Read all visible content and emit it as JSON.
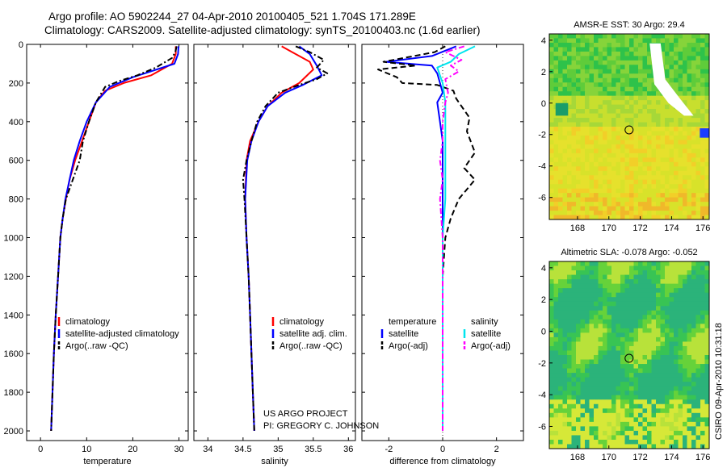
{
  "header": {
    "line1": "Argo profile: AO 5902244_27 04-Apr-2010 20100405_521 1.704S 171.289E",
    "line2": "Climatology: CARS2009. Satellite-adjusted climatology: synTS_20100403.nc (1.6d earlier)"
  },
  "side_credit": "CSIRO 09-Apr-2010 10:31:18",
  "colors": {
    "clim": "#ff0000",
    "sat": "#0000ff",
    "argo": "#000000",
    "sat_diff": "#00e5ee",
    "argo_diff": "#ff00ff"
  },
  "chart_data": [
    {
      "type": "line",
      "title": "",
      "xlabel": "temperature",
      "ylabel": "",
      "xlim": [
        -3,
        32
      ],
      "ylim": [
        2050,
        0
      ],
      "xticks": [
        0,
        10,
        20,
        30
      ],
      "yticks": [
        0,
        200,
        400,
        600,
        800,
        1000,
        1200,
        1400,
        1600,
        1800,
        2000
      ],
      "legend": [
        "climatology",
        "satellite-adjusted climatology",
        "Argo(..raw -QC)"
      ],
      "series": [
        {
          "name": "climatology",
          "color": "#ff0000",
          "style": "solid",
          "points": [
            [
              29.3,
              10
            ],
            [
              29.3,
              50
            ],
            [
              28.5,
              100
            ],
            [
              24,
              160
            ],
            [
              18,
              200
            ],
            [
              14,
              240
            ],
            [
              12,
              300
            ],
            [
              10.5,
              400
            ],
            [
              9,
              500
            ],
            [
              7.5,
              600
            ],
            [
              6.3,
              700
            ],
            [
              5.5,
              800
            ],
            [
              4.8,
              900
            ],
            [
              4.3,
              1000
            ],
            [
              3.8,
              1200
            ],
            [
              3.3,
              1400
            ],
            [
              2.9,
              1600
            ],
            [
              2.6,
              1800
            ],
            [
              2.3,
              2000
            ]
          ]
        },
        {
          "name": "satellite-adjusted climatology",
          "color": "#0000ff",
          "style": "solid",
          "points": [
            [
              29.9,
              10
            ],
            [
              29.8,
              50
            ],
            [
              29,
              100
            ],
            [
              20,
              170
            ],
            [
              15,
              220
            ],
            [
              13.5,
              260
            ],
            [
              12,
              300
            ],
            [
              10,
              400
            ],
            [
              8.5,
              500
            ],
            [
              7.2,
              600
            ],
            [
              6.3,
              700
            ],
            [
              5.4,
              800
            ],
            [
              4.8,
              900
            ],
            [
              4.3,
              1000
            ],
            [
              3.8,
              1200
            ],
            [
              3.3,
              1400
            ],
            [
              2.9,
              1600
            ],
            [
              2.6,
              1800
            ],
            [
              2.3,
              2000
            ]
          ]
        },
        {
          "name": "Argo(..raw -QC)",
          "color": "#000000",
          "style": "dashdot",
          "points": [
            [
              29.5,
              10
            ],
            [
              29.2,
              40
            ],
            [
              28.5,
              70
            ],
            [
              25,
              120
            ],
            [
              21,
              160
            ],
            [
              17,
              190
            ],
            [
              14,
              220
            ],
            [
              13,
              260
            ],
            [
              12,
              300
            ],
            [
              10.5,
              400
            ],
            [
              9.2,
              500
            ],
            [
              8.5,
              600
            ],
            [
              7,
              700
            ],
            [
              5.5,
              800
            ],
            [
              4.8,
              900
            ],
            [
              4.3,
              1000
            ],
            [
              3.8,
              1200
            ],
            [
              3.3,
              1400
            ],
            [
              2.9,
              1600
            ],
            [
              2.6,
              1800
            ],
            [
              2.3,
              2000
            ]
          ]
        }
      ]
    },
    {
      "type": "line",
      "title": "",
      "xlabel": "salinity",
      "ylabel": "",
      "xlim": [
        33.8,
        36.1
      ],
      "ylim": [
        2050,
        0
      ],
      "xticks": [
        34,
        34.5,
        35,
        35.5,
        36
      ],
      "yticks": [],
      "legend": [
        "climatology",
        "satellite adj. clim.",
        "Argo(..raw -QC)"
      ],
      "series": [
        {
          "name": "climatology",
          "color": "#ff0000",
          "style": "solid",
          "points": [
            [
              35.05,
              10
            ],
            [
              35.2,
              40
            ],
            [
              35.45,
              90
            ],
            [
              35.5,
              130
            ],
            [
              35.3,
              200
            ],
            [
              35.05,
              250
            ],
            [
              34.85,
              320
            ],
            [
              34.72,
              400
            ],
            [
              34.6,
              500
            ],
            [
              34.55,
              600
            ],
            [
              34.53,
              800
            ],
            [
              34.55,
              1000
            ],
            [
              34.58,
              1200
            ],
            [
              34.6,
              1400
            ],
            [
              34.62,
              1600
            ],
            [
              34.64,
              1800
            ],
            [
              34.66,
              2000
            ]
          ]
        },
        {
          "name": "satellite adj. clim.",
          "color": "#0000ff",
          "style": "solid",
          "points": [
            [
              35.3,
              10
            ],
            [
              35.45,
              50
            ],
            [
              35.55,
              110
            ],
            [
              35.62,
              160
            ],
            [
              35.35,
              210
            ],
            [
              35.1,
              250
            ],
            [
              34.85,
              320
            ],
            [
              34.72,
              400
            ],
            [
              34.62,
              500
            ],
            [
              34.56,
              600
            ],
            [
              34.53,
              800
            ],
            [
              34.55,
              1000
            ],
            [
              34.58,
              1200
            ],
            [
              34.6,
              1400
            ],
            [
              34.62,
              1600
            ],
            [
              34.64,
              1800
            ],
            [
              34.66,
              2000
            ]
          ]
        },
        {
          "name": "Argo(..raw -QC)",
          "color": "#000000",
          "style": "dashdot",
          "points": [
            [
              35.25,
              10
            ],
            [
              35.45,
              40
            ],
            [
              35.65,
              80
            ],
            [
              35.55,
              120
            ],
            [
              35.7,
              150
            ],
            [
              35.55,
              180
            ],
            [
              35.3,
              210
            ],
            [
              35.0,
              250
            ],
            [
              34.82,
              320
            ],
            [
              34.7,
              400
            ],
            [
              34.62,
              500
            ],
            [
              34.55,
              600
            ],
            [
              34.5,
              700
            ],
            [
              34.52,
              800
            ],
            [
              34.55,
              1000
            ],
            [
              34.58,
              1200
            ],
            [
              34.6,
              1400
            ],
            [
              34.62,
              1600
            ],
            [
              34.64,
              1800
            ],
            [
              34.66,
              2000
            ]
          ]
        }
      ]
    },
    {
      "type": "line",
      "title": "",
      "xlabel": "difference from climatology",
      "ylabel": "",
      "xlim": [
        -3,
        3
      ],
      "ylim": [
        2050,
        0
      ],
      "xticks": [
        -2,
        0,
        2
      ],
      "yticks": [],
      "legend_groups": {
        "temperature": [
          "satellite",
          "Argo(-adj)"
        ],
        "salinity": [
          "satellite",
          "Argo(-adj)"
        ]
      },
      "series": [
        {
          "name": "temperature satellite",
          "color": "#0000ff",
          "style": "solid",
          "points": [
            [
              0.5,
              10
            ],
            [
              -0.4,
              60
            ],
            [
              -2.1,
              90
            ],
            [
              -0.4,
              110
            ],
            [
              -0.2,
              150
            ],
            [
              -0.1,
              200
            ],
            [
              0,
              250
            ],
            [
              -0.2,
              300
            ],
            [
              -0.1,
              400
            ],
            [
              0,
              500
            ],
            [
              0,
              600
            ],
            [
              0,
              800
            ],
            [
              0,
              1000
            ],
            [
              0,
              1200
            ],
            [
              0,
              1400
            ],
            [
              0,
              1600
            ],
            [
              0,
              1800
            ],
            [
              0,
              2000
            ]
          ]
        },
        {
          "name": "temperature Argo(-adj)",
          "color": "#000000",
          "style": "dashed",
          "points": [
            [
              0.1,
              10
            ],
            [
              -0.3,
              40
            ],
            [
              -2.2,
              90
            ],
            [
              -1.0,
              110
            ],
            [
              -2.4,
              130
            ],
            [
              -1.7,
              170
            ],
            [
              -1.5,
              200
            ],
            [
              -0.2,
              210
            ],
            [
              0.4,
              240
            ],
            [
              0.5,
              280
            ],
            [
              1.0,
              380
            ],
            [
              0.9,
              450
            ],
            [
              1.2,
              560
            ],
            [
              0.8,
              640
            ],
            [
              1.2,
              700
            ],
            [
              0.6,
              800
            ],
            [
              0.3,
              900
            ],
            [
              0.1,
              1000
            ],
            [
              0,
              1200
            ],
            [
              0,
              1400
            ],
            [
              0,
              1600
            ],
            [
              0,
              1800
            ],
            [
              0,
              2000
            ]
          ]
        },
        {
          "name": "salinity satellite",
          "color": "#00e5ee",
          "style": "solid",
          "points": [
            [
              1.2,
              10
            ],
            [
              0.6,
              50
            ],
            [
              0.3,
              90
            ],
            [
              -0.2,
              120
            ],
            [
              0,
              200
            ],
            [
              0.1,
              300
            ],
            [
              0.1,
              400
            ],
            [
              0.1,
              500
            ],
            [
              0.1,
              600
            ],
            [
              0.1,
              800
            ],
            [
              0,
              1000
            ],
            [
              0,
              1200
            ],
            [
              0,
              1400
            ],
            [
              0,
              1600
            ],
            [
              0,
              1800
            ],
            [
              0,
              2000
            ]
          ]
        },
        {
          "name": "salinity Argo(-adj)",
          "color": "#ff00ff",
          "style": "dashdot",
          "points": [
            [
              0.8,
              10
            ],
            [
              0.1,
              40
            ],
            [
              0.7,
              80
            ],
            [
              0.3,
              110
            ],
            [
              0.6,
              140
            ],
            [
              0.1,
              180
            ],
            [
              0.2,
              250
            ],
            [
              0.1,
              300
            ],
            [
              0,
              400
            ],
            [
              0,
              500
            ],
            [
              -0.1,
              600
            ],
            [
              0,
              700
            ],
            [
              -0.1,
              800
            ],
            [
              0,
              1000
            ],
            [
              0,
              1200
            ],
            [
              0,
              1400
            ],
            [
              0,
              1600
            ],
            [
              0,
              1800
            ],
            [
              0,
              2000
            ]
          ]
        }
      ],
      "annotations": [
        "US ARGO PROJECT",
        "PI: GREGORY C. JOHNSON"
      ]
    },
    {
      "type": "heatmap",
      "title": "AMSR-E SST: 30 Argo: 29.4",
      "xlim": [
        166.2,
        176.4
      ],
      "ylim": [
        -7.4,
        4.4
      ],
      "xticks": [
        168,
        170,
        172,
        174,
        176
      ],
      "yticks": [
        -6,
        -4,
        -2,
        0,
        2,
        4
      ],
      "marker": {
        "lon": 171.289,
        "lat": -1.704
      }
    },
    {
      "type": "heatmap",
      "title": "Altimetric SLA: -0.078 Argo: -0.052",
      "xlim": [
        166.2,
        176.4
      ],
      "ylim": [
        -7.4,
        4.4
      ],
      "xticks": [
        168,
        170,
        172,
        174,
        176
      ],
      "yticks": [
        -6,
        -4,
        -2,
        0,
        2,
        4
      ],
      "marker": {
        "lon": 171.289,
        "lat": -1.704
      }
    }
  ]
}
